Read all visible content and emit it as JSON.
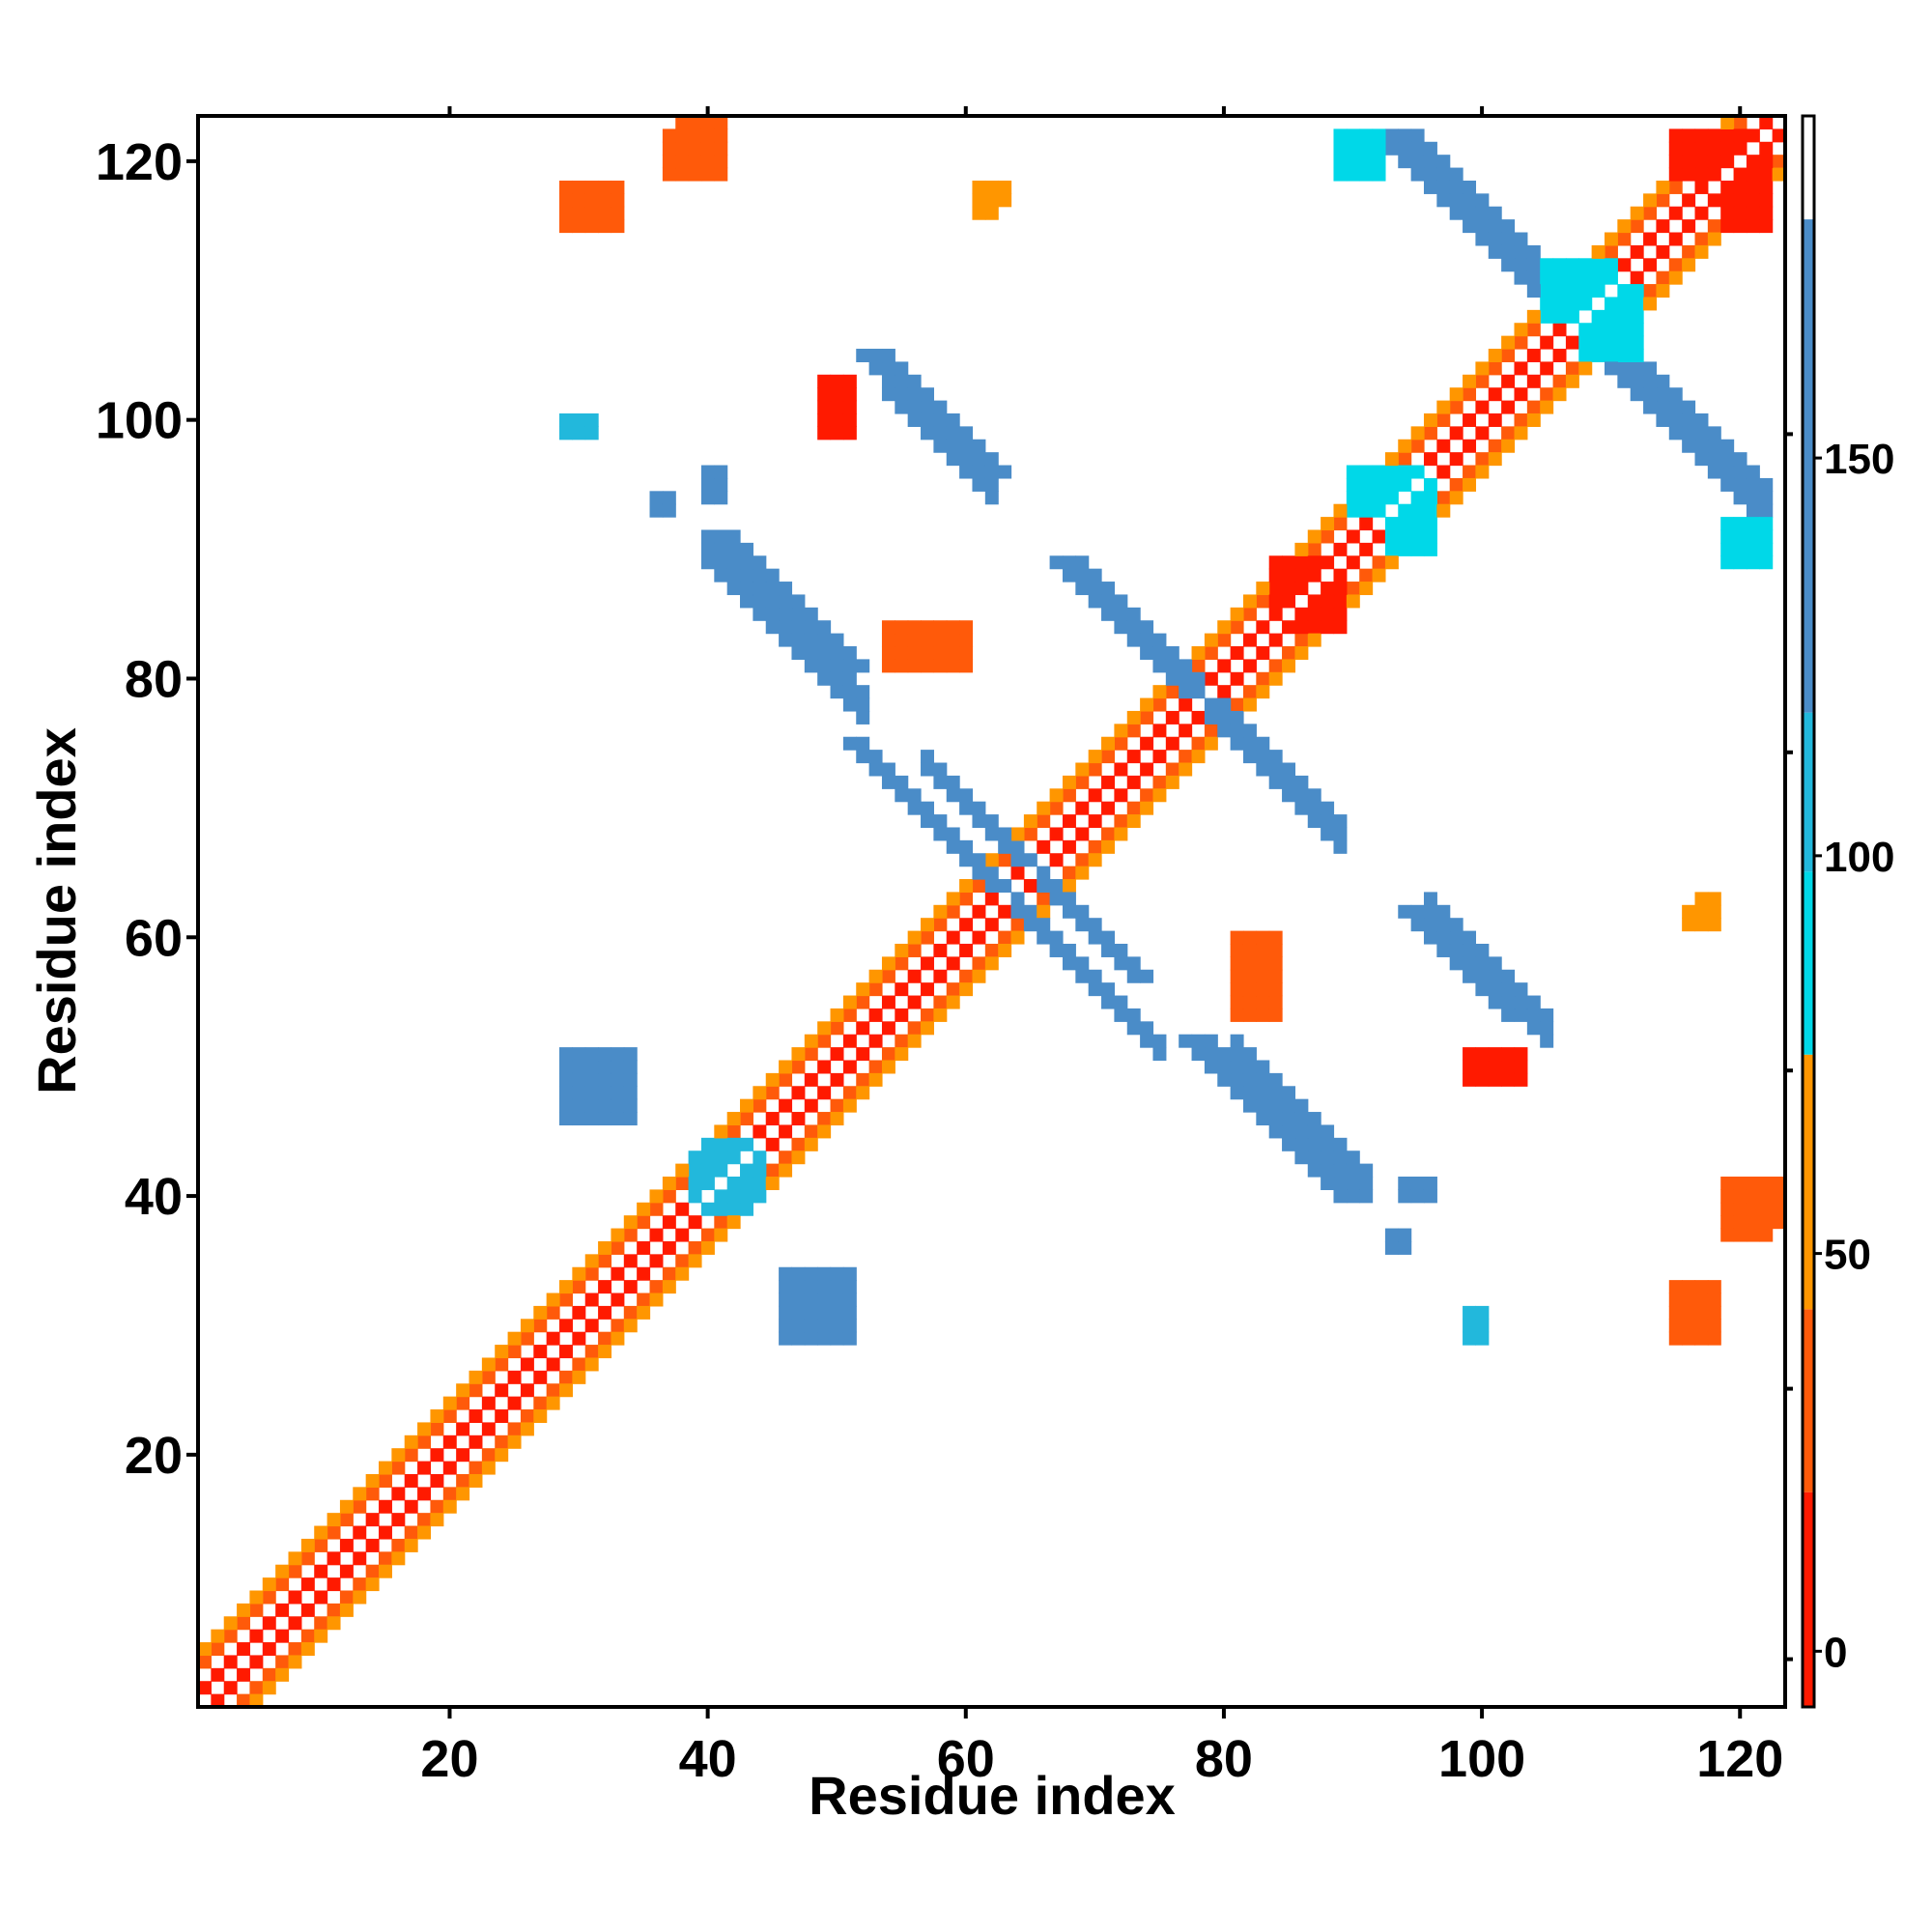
{
  "chart_data": {
    "type": "heatmap",
    "title": "",
    "xlabel": "Residue index",
    "ylabel": "Residue index",
    "xlim": [
      1,
      123
    ],
    "ylim": [
      1,
      123
    ],
    "xticks": [
      20,
      40,
      60,
      80,
      100,
      120
    ],
    "yticks": [
      20,
      40,
      60,
      80,
      100,
      120
    ],
    "grid": false,
    "colorbar": {
      "placement": "right",
      "ticks": [
        0,
        50,
        100,
        150
      ],
      "range": [
        -7,
        193
      ],
      "stops": [
        {
          "from": -7,
          "to": 20,
          "color": "#ff1a00"
        },
        {
          "from": 20,
          "to": 43,
          "color": "#ff5a0a"
        },
        {
          "from": 43,
          "to": 75,
          "color": "#ff9600"
        },
        {
          "from": 75,
          "to": 98,
          "color": "#00d8e8"
        },
        {
          "from": 98,
          "to": 118,
          "color": "#22b8dc"
        },
        {
          "from": 118,
          "to": 180,
          "color": "#4a8cc8"
        },
        {
          "from": 180,
          "to": 193,
          "color": "#ffffff"
        }
      ]
    },
    "bands": [
      {
        "name": "diagonal-sequential",
        "x": [
          1,
          122
        ],
        "offset": 1,
        "width": 1,
        "value": 15
      },
      {
        "name": "diagonal-i3",
        "x": [
          1,
          120
        ],
        "offset": 3,
        "width": 1,
        "value": 35
      },
      {
        "name": "diagonal-i4",
        "x": [
          1,
          119
        ],
        "offset": 4,
        "width": 1,
        "value": 55
      },
      {
        "name": "hairpin-1",
        "x": [
          40,
          52
        ],
        "yStart": 91,
        "slope": -1,
        "width": 3,
        "value": 150
      },
      {
        "name": "hairpin-2",
        "x": [
          71,
          89
        ],
        "yStart": 87,
        "slope": -1,
        "width": 3,
        "value": 150
      },
      {
        "name": "sheet-upper",
        "x": [
          95,
          107
        ],
        "yStart": 122,
        "slope": -1,
        "width": 3,
        "value": 150
      },
      {
        "name": "sheet-right",
        "x": [
          107,
          122
        ],
        "yStart": 109,
        "slope": -1,
        "width": 3,
        "value": 150
      },
      {
        "name": "strand-55-103",
        "x": [
          54,
          62
        ],
        "yStart": 104,
        "slope": -1,
        "width": 3,
        "value": 150
      },
      {
        "name": "strand-81-51",
        "x": [
          81,
          91
        ],
        "yStart": 52,
        "slope": -1,
        "width": 3,
        "value": 150
      },
      {
        "name": "strand-97-63",
        "x": [
          96,
          105
        ],
        "yStart": 63,
        "slope": -1,
        "width": 3,
        "value": 150
      },
      {
        "name": "strand-58-74",
        "x": [
          57,
          66
        ],
        "yStart": 74,
        "slope": -1,
        "width": 2,
        "value": 150
      },
      {
        "name": "strand-64-62",
        "x": [
          64,
          75
        ],
        "yStart": 63,
        "slope": -1,
        "width": 2,
        "value": 150
      }
    ],
    "blocks": [
      {
        "x": [
          29,
          34
        ],
        "y": [
          46,
          51
        ],
        "value": 150
      },
      {
        "x": [
          47,
          51
        ],
        "y": [
          30,
          34
        ],
        "value": 150
      },
      {
        "x": [
          40,
          43
        ],
        "y": [
          39,
          44
        ],
        "value": 110
      },
      {
        "x": [
          93,
          96
        ],
        "y": [
          90,
          96
        ],
        "value": 90
      },
      {
        "x": [
          108,
          112
        ],
        "y": [
          105,
          110
        ],
        "value": 90
      },
      {
        "x": [
          38,
          41
        ],
        "y": [
          119,
          123
        ],
        "value": 40
      },
      {
        "x": [
          30,
          33
        ],
        "y": [
          115,
          118
        ],
        "value": 30
      },
      {
        "x": [
          49,
          51
        ],
        "y": [
          99,
          101
        ],
        "value": 10
      },
      {
        "x": [
          101,
          103
        ],
        "y": [
          49,
          51
        ],
        "value": 10
      },
      {
        "x": [
          84,
          87
        ],
        "y": [
          85,
          89
        ],
        "value": 10
      },
      {
        "x": [
          54,
          58
        ],
        "y": [
          81,
          84
        ],
        "value": 25
      },
      {
        "x": [
          81,
          84
        ],
        "y": [
          55,
          60
        ],
        "value": 20
      },
      {
        "x": [
          119,
          122
        ],
        "y": [
          37,
          40
        ],
        "value": 30
      },
      {
        "x": [
          115,
          118
        ],
        "y": [
          29,
          32
        ],
        "value": 25
      },
      {
        "x": [
          119,
          122
        ],
        "y": [
          115,
          121
        ],
        "value": 15
      },
      {
        "x": [
          61,
          62
        ],
        "y": [
          116,
          118
        ],
        "value": 45
      },
      {
        "x": [
          117,
          118
        ],
        "y": [
          62,
          63
        ],
        "value": 45
      },
      {
        "x": [
          99,
          100
        ],
        "y": [
          30,
          31
        ],
        "value": 105
      },
      {
        "x": [
          29,
          30
        ],
        "y": [
          99,
          100
        ],
        "value": 105
      },
      {
        "x": [
          119,
          122
        ],
        "y": [
          90,
          92
        ],
        "value": 95
      },
      {
        "x": [
          89,
          91
        ],
        "y": [
          119,
          122
        ],
        "value": 95
      },
      {
        "x": [
          94,
          96
        ],
        "y": [
          40,
          41
        ],
        "value": 150
      },
      {
        "x": [
          36,
          37
        ],
        "y": [
          93,
          94
        ],
        "value": 150
      }
    ]
  }
}
